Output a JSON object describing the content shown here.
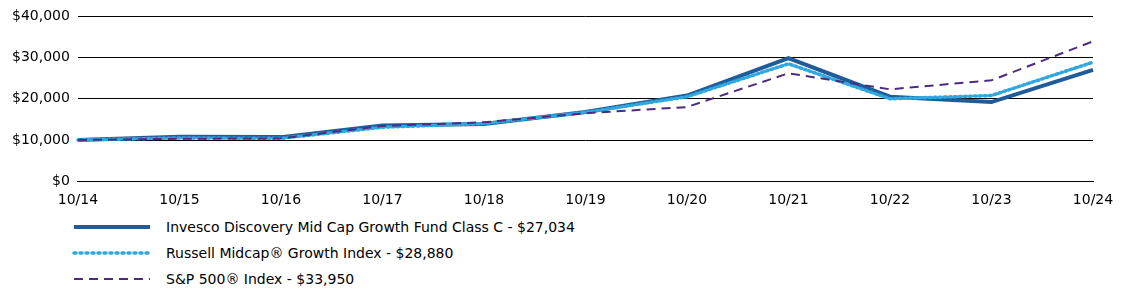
{
  "chart_data": {
    "type": "line",
    "categories": [
      "10/14",
      "10/15",
      "10/16",
      "10/17",
      "10/18",
      "10/19",
      "10/20",
      "10/21",
      "10/22",
      "10/23",
      "10/24"
    ],
    "series": [
      {
        "name": "Invesco Discovery Mid Cap Growth Fund Class C - $27,034",
        "color": "#1f5c99",
        "line_style": "solid",
        "values": [
          10000,
          10800,
          10700,
          13500,
          13900,
          16800,
          20800,
          29900,
          20500,
          19200,
          27034
        ]
      },
      {
        "name": "Russell Midcap® Growth Index - $28,880",
        "color": "#2ea8df",
        "line_style": "dotted",
        "values": [
          10000,
          10500,
          10400,
          13100,
          14000,
          16700,
          20500,
          28500,
          20000,
          20800,
          28880
        ]
      },
      {
        "name": "S&P 500® Index - $33,950",
        "color": "#4b2d7f",
        "line_style": "dashed",
        "values": [
          10000,
          10300,
          10400,
          13400,
          14300,
          16500,
          18000,
          26200,
          22300,
          24500,
          33950
        ]
      }
    ],
    "ylim": [
      0,
      40000
    ],
    "yticks": [
      {
        "value": 0,
        "label": "$0"
      },
      {
        "value": 10000,
        "label": "$10,000"
      },
      {
        "value": 20000,
        "label": "$20,000"
      },
      {
        "value": 30000,
        "label": "$30,000"
      },
      {
        "value": 40000,
        "label": "$40,000"
      }
    ],
    "grid": true,
    "legend": "bottom"
  }
}
